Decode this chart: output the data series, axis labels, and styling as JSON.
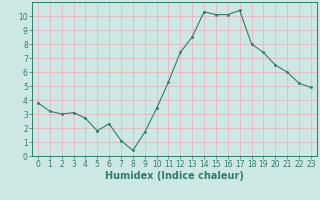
{
  "x": [
    0,
    1,
    2,
    3,
    4,
    5,
    6,
    7,
    8,
    9,
    10,
    11,
    12,
    13,
    14,
    15,
    16,
    17,
    18,
    19,
    20,
    21,
    22,
    23
  ],
  "y": [
    3.8,
    3.2,
    3.0,
    3.1,
    2.7,
    1.8,
    2.3,
    1.1,
    0.4,
    1.7,
    3.4,
    5.3,
    7.4,
    8.5,
    10.3,
    10.1,
    10.1,
    10.4,
    8.0,
    7.4,
    6.5,
    6.0,
    5.2,
    4.9
  ],
  "line_color": "#2e7d6e",
  "marker": ".",
  "marker_size": 3,
  "bg_color": "#cde8e4",
  "grid_color": "#e8b8b8",
  "xlabel": "Humidex (Indice chaleur)",
  "xlim": [
    -0.5,
    23.5
  ],
  "ylim": [
    0,
    11
  ],
  "xticks": [
    0,
    1,
    2,
    3,
    4,
    5,
    6,
    7,
    8,
    9,
    10,
    11,
    12,
    13,
    14,
    15,
    16,
    17,
    18,
    19,
    20,
    21,
    22,
    23
  ],
  "yticks": [
    0,
    1,
    2,
    3,
    4,
    5,
    6,
    7,
    8,
    9,
    10
  ],
  "tick_fontsize": 5.5,
  "xlabel_fontsize": 7,
  "label_color": "#2e7d6e"
}
